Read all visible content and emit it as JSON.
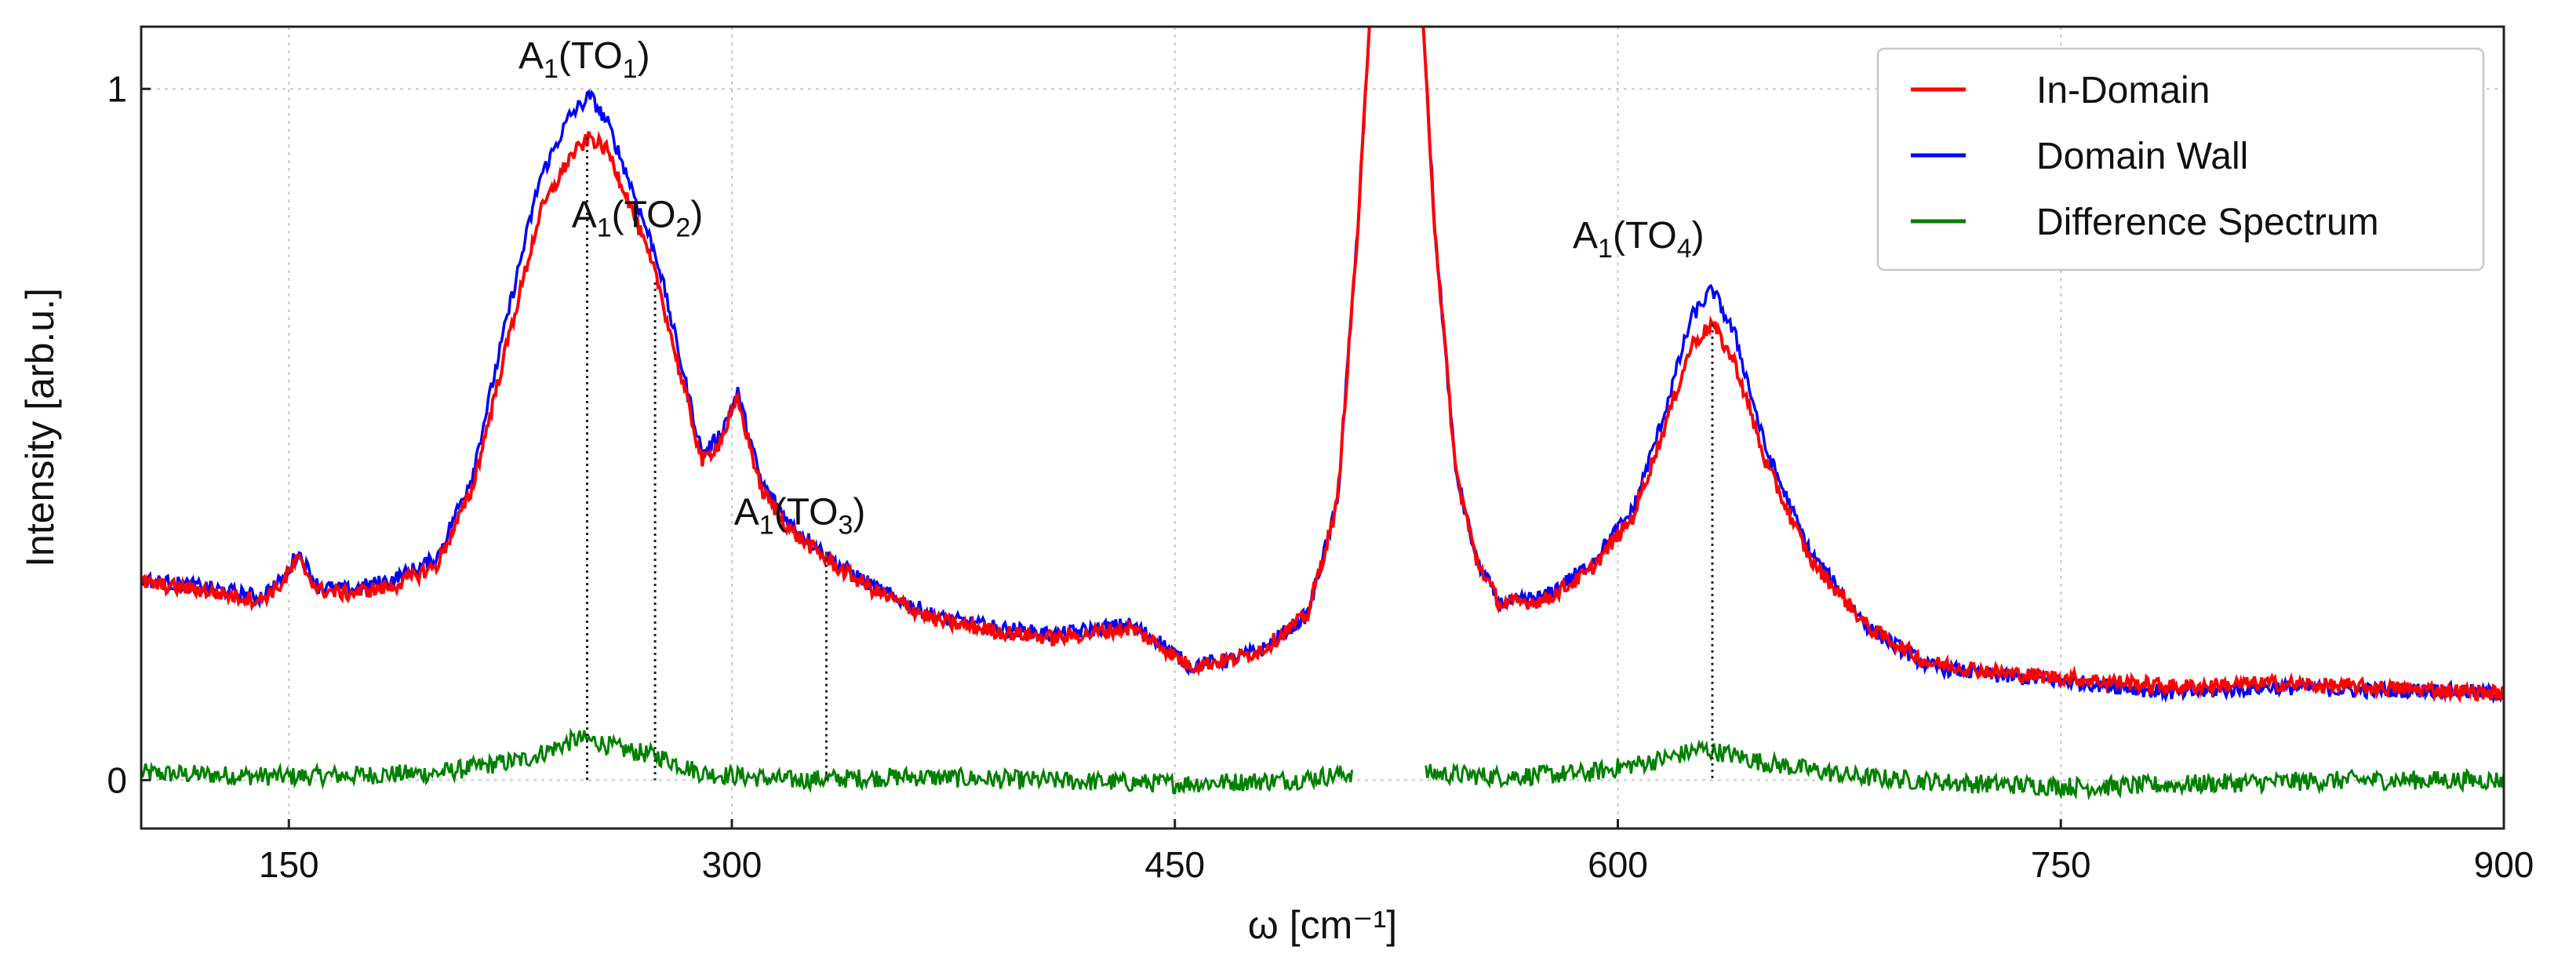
{
  "chart_data": {
    "type": "line",
    "title": "",
    "xlabel": "ω [cm⁻¹]",
    "ylabel": "Intensity [arb.u.]",
    "xlim": [
      100,
      900
    ],
    "ylim": [
      -0.07,
      1.09
    ],
    "grid": true,
    "x_ticks": [
      150,
      300,
      450,
      600,
      750,
      900
    ],
    "y_ticks": [
      0,
      1
    ],
    "x_tick_labels": [
      "150",
      "300",
      "450",
      "600",
      "750",
      "900"
    ],
    "y_tick_labels": [
      "0",
      "1"
    ],
    "legend_position": "top-right",
    "series": [
      {
        "name": "In-Domain",
        "color": "#ff0000",
        "x": [
          100,
          120,
          140,
          148,
          153,
          160,
          170,
          185,
          200,
          212,
          225,
          235,
          245,
          252,
          258,
          265,
          275,
          283,
          290,
          296,
          302,
          310,
          320,
          335,
          350,
          370,
          390,
          410,
          425,
          435,
          445,
          455,
          470,
          480,
          495,
          505,
          512,
          516,
          520,
          530,
          534,
          538,
          545,
          552,
          560,
          575,
          590,
          605,
          615,
          625,
          632,
          640,
          650,
          665,
          685,
          705,
          730,
          760,
          790,
          820,
          850,
          880,
          900
        ],
        "values": [
          0.285,
          0.275,
          0.26,
          0.285,
          0.32,
          0.275,
          0.27,
          0.28,
          0.31,
          0.42,
          0.65,
          0.82,
          0.9,
          0.93,
          0.91,
          0.84,
          0.72,
          0.58,
          0.46,
          0.49,
          0.55,
          0.42,
          0.36,
          0.31,
          0.27,
          0.23,
          0.215,
          0.205,
          0.215,
          0.22,
          0.195,
          0.165,
          0.175,
          0.19,
          0.24,
          0.4,
          0.8,
          1.1,
          1.1,
          1.1,
          1.1,
          0.8,
          0.45,
          0.32,
          0.255,
          0.26,
          0.3,
          0.38,
          0.5,
          0.63,
          0.66,
          0.6,
          0.46,
          0.32,
          0.22,
          0.17,
          0.155,
          0.145,
          0.135,
          0.14,
          0.135,
          0.13,
          0.125
        ]
      },
      {
        "name": "Domain Wall",
        "color": "#0000ff",
        "x": [
          100,
          120,
          140,
          148,
          153,
          160,
          170,
          185,
          200,
          212,
          225,
          235,
          245,
          252,
          258,
          265,
          275,
          283,
          290,
          296,
          302,
          310,
          320,
          335,
          350,
          370,
          390,
          410,
          425,
          435,
          445,
          455,
          470,
          480,
          495,
          505,
          512,
          516,
          520,
          530,
          534,
          538,
          545,
          552,
          560,
          575,
          590,
          605,
          615,
          625,
          632,
          640,
          650,
          665,
          685,
          705,
          730,
          760,
          790,
          820,
          850,
          880,
          900
        ],
        "values": [
          0.29,
          0.28,
          0.265,
          0.29,
          0.33,
          0.28,
          0.275,
          0.29,
          0.32,
          0.44,
          0.69,
          0.87,
          0.96,
          0.99,
          0.95,
          0.87,
          0.75,
          0.6,
          0.47,
          0.5,
          0.56,
          0.43,
          0.37,
          0.315,
          0.275,
          0.235,
          0.22,
          0.21,
          0.22,
          0.225,
          0.2,
          0.165,
          0.175,
          0.19,
          0.24,
          0.4,
          0.8,
          1.1,
          1.1,
          1.1,
          1.1,
          0.8,
          0.45,
          0.32,
          0.255,
          0.265,
          0.31,
          0.39,
          0.52,
          0.67,
          0.71,
          0.64,
          0.48,
          0.33,
          0.22,
          0.165,
          0.15,
          0.14,
          0.125,
          0.135,
          0.13,
          0.13,
          0.125
        ]
      },
      {
        "name": "Difference Spectrum",
        "color": "#008000",
        "segments": [
          {
            "x": [
              100,
              150,
              200,
              230,
              248,
              255,
              262,
              275,
              290,
              320,
              360,
              400,
              450,
              490,
              510
            ],
            "values": [
              0.01,
              0.005,
              0.01,
              0.03,
              0.06,
              0.055,
              0.045,
              0.035,
              0.01,
              0.0,
              0.005,
              0.0,
              -0.005,
              0.0,
              0.01
            ]
          },
          {
            "x": [
              535,
              560,
              590,
              615,
              628,
              635,
              650,
              680,
              720,
              760,
              800,
              850,
              900
            ],
            "values": [
              0.01,
              0.005,
              0.01,
              0.03,
              0.045,
              0.04,
              0.025,
              0.005,
              -0.005,
              -0.01,
              -0.005,
              0.0,
              0.0
            ]
          }
        ]
      }
    ],
    "reference_lines": [
      {
        "x": 251,
        "y_top": 0.93
      },
      {
        "x": 274,
        "y_top": 0.72
      },
      {
        "x": 332,
        "y_top": 0.33
      },
      {
        "x": 632,
        "y_top": 0.66
      }
    ],
    "annotations": [
      {
        "label": "A",
        "subscript": "1",
        "mid": "(TO",
        "mid_subscript": "1",
        "close": ")",
        "x": 250,
        "y": 1.03
      },
      {
        "label": "A",
        "subscript": "1",
        "mid": "(TO",
        "mid_subscript": "2",
        "close": ")",
        "x": 268,
        "y": 0.8
      },
      {
        "label": "A",
        "subscript": "1",
        "mid": "(TO",
        "mid_subscript": "3",
        "close": ")",
        "x": 323,
        "y": 0.37
      },
      {
        "label": "A",
        "subscript": "1",
        "mid": "(TO",
        "mid_subscript": "4",
        "close": ")",
        "x": 607,
        "y": 0.77
      }
    ]
  }
}
